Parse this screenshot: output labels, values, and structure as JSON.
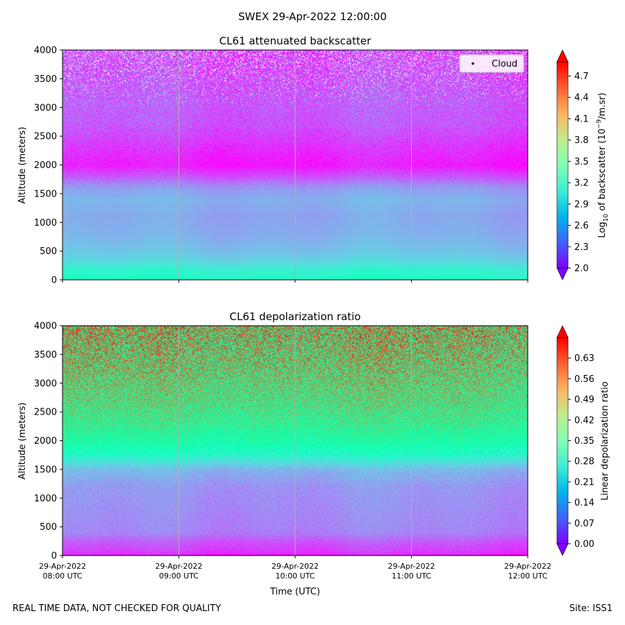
{
  "figure": {
    "title": "SWEX 29-Apr-2022 12:00:00",
    "footer_left": "REAL TIME DATA, NOT CHECKED FOR QUALITY",
    "footer_right": "Site: ISS1"
  },
  "chart_data": [
    {
      "type": "heatmap",
      "title": "CL61 attenuated backscatter",
      "xlabel": "",
      "ylabel": "Altitude (meters)",
      "xlim": [
        0,
        4
      ],
      "ylim": [
        0,
        4000
      ],
      "x_ticks": [
        0,
        1,
        2,
        3,
        4
      ],
      "x_tick_labels": [],
      "y_ticks": [
        0,
        500,
        1000,
        1500,
        2000,
        2500,
        3000,
        3500,
        4000
      ],
      "y_tick_labels": [
        "0",
        "500",
        "1000",
        "1500",
        "2000",
        "2500",
        "3000",
        "3500",
        "4000"
      ],
      "vertical_gridlines_at": [
        1,
        2,
        3
      ],
      "colormap": "rainbow",
      "colorbar": {
        "label_prefix": "Log",
        "label_sub": "10",
        "label_mid": " of backscatter (10",
        "label_sup": "−9",
        "label_suffix": "/m.sr)",
        "min": 2.0,
        "max": 4.9,
        "ticks": [
          2.0,
          2.3,
          2.6,
          2.9,
          3.2,
          3.5,
          3.8,
          4.1,
          4.4,
          4.7
        ],
        "tick_labels": [
          "2.0",
          "2.3",
          "2.6",
          "2.9",
          "3.2",
          "3.5",
          "3.8",
          "4.1",
          "4.4",
          "4.7"
        ],
        "extend": "both"
      },
      "legend": {
        "entries": [
          "Cloud"
        ],
        "placement": "upper right"
      },
      "profile": {
        "altitudes_m": [
          0,
          80,
          180,
          300,
          500,
          800,
          1100,
          1400,
          1600,
          1800,
          2000,
          2300,
          2700,
          3100,
          3500,
          4000
        ],
        "values": [
          3.35,
          3.2,
          3.15,
          2.95,
          2.8,
          2.7,
          2.66,
          2.72,
          2.6,
          2.3,
          2.08,
          2.18,
          2.32,
          2.35,
          2.3,
          2.25
        ]
      },
      "noise_amplitude": [
        0.05,
        0.3
      ],
      "missing_data_above_m": 3000,
      "missing_fraction": [
        0.0,
        0.18
      ]
    },
    {
      "type": "heatmap",
      "title": "CL61 depolarization ratio",
      "xlabel": "Time (UTC)",
      "ylabel": "Altitude (meters)",
      "xlim": [
        0,
        4
      ],
      "ylim": [
        0,
        4000
      ],
      "x_ticks": [
        0,
        1,
        2,
        3,
        4
      ],
      "x_tick_labels": [
        [
          "29-Apr-2022",
          "08:00 UTC"
        ],
        [
          "29-Apr-2022",
          "09:00 UTC"
        ],
        [
          "29-Apr-2022",
          "10:00 UTC"
        ],
        [
          "29-Apr-2022",
          "11:00 UTC"
        ],
        [
          "29-Apr-2022",
          "12:00 UTC"
        ]
      ],
      "y_ticks": [
        0,
        500,
        1000,
        1500,
        2000,
        2500,
        3000,
        3500,
        4000
      ],
      "y_tick_labels": [
        "0",
        "500",
        "1000",
        "1500",
        "2000",
        "2500",
        "3000",
        "3500",
        "4000"
      ],
      "vertical_gridlines_at": [
        1,
        2,
        3
      ],
      "colormap": "rainbow",
      "colorbar": {
        "label": "Linear depolarization ratio",
        "min": 0.0,
        "max": 0.7,
        "ticks": [
          0.0,
          0.07,
          0.14,
          0.21,
          0.28,
          0.35,
          0.42,
          0.49,
          0.56,
          0.63
        ],
        "tick_labels": [
          "0.00",
          "0.07",
          "0.14",
          "0.21",
          "0.28",
          "0.35",
          "0.42",
          "0.49",
          "0.56",
          "0.63"
        ],
        "extend": "both"
      },
      "profile": {
        "altitudes_m": [
          0,
          60,
          250,
          400,
          800,
          1200,
          1500,
          1750,
          2000,
          2300,
          2700,
          3200,
          3700,
          4000
        ],
        "values": [
          0.02,
          0.05,
          0.08,
          0.12,
          0.13,
          0.14,
          0.18,
          0.3,
          0.38,
          0.43,
          0.47,
          0.5,
          0.52,
          0.53
        ]
      },
      "noise_amplitude": [
        0.03,
        0.2
      ]
    }
  ]
}
